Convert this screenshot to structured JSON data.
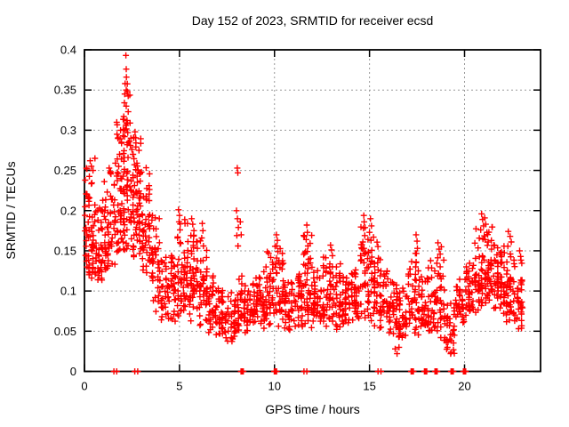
{
  "page_title": "Day 152 of 2023, SRMTID for receiver ecsd",
  "chart_data": {
    "type": "scatter",
    "title": "Day 152 of 2023, SRMTID for receiver ecsd",
    "xlabel": "GPS time / hours",
    "ylabel": "SRMTID / TECUs",
    "xlim": [
      0,
      24
    ],
    "ylim": [
      0,
      0.4
    ],
    "xticks": {
      "values": [
        0,
        5,
        10,
        15,
        20
      ],
      "labels": [
        "0",
        "5",
        "10",
        "15",
        "20"
      ]
    },
    "yticks": {
      "values": [
        0,
        0.05,
        0.1,
        0.15,
        0.2,
        0.25,
        0.3,
        0.35,
        0.4
      ],
      "labels": [
        "0",
        "0.05",
        "0.1",
        "0.15",
        "0.2",
        "0.25",
        "0.3",
        "0.35",
        "0.4"
      ]
    },
    "grid": true,
    "grid_x_values": [
      5,
      10,
      15,
      20
    ],
    "grid_y_values": [
      0.05,
      0.1,
      0.15,
      0.2,
      0.25,
      0.3,
      0.35
    ],
    "legend": null,
    "marker": {
      "shape": "plus",
      "color": "#ff0000",
      "size": 7,
      "stroke_width": 1.4
    },
    "colors": {
      "marker": "#ff0000",
      "axis": "#000000",
      "grid": "#999999",
      "background": "#ffffff"
    },
    "seed": 7,
    "columns_per_band": 3,
    "density_bands": [
      [
        0,
        0.5,
        55,
        0.1,
        0.26
      ],
      [
        0.5,
        1,
        42,
        0.11,
        0.22
      ],
      [
        1,
        1.5,
        45,
        0.12,
        0.25
      ],
      [
        1.5,
        2,
        50,
        0.13,
        0.31
      ],
      [
        2,
        2.5,
        60,
        0.14,
        0.36
      ],
      [
        2.5,
        3,
        60,
        0.13,
        0.31
      ],
      [
        3,
        3.5,
        46,
        0.12,
        0.26
      ],
      [
        3.5,
        4,
        40,
        0.07,
        0.2
      ],
      [
        4,
        4.5,
        35,
        0.055,
        0.15
      ],
      [
        4.5,
        5,
        40,
        0.06,
        0.17
      ],
      [
        5,
        5.5,
        45,
        0.07,
        0.19
      ],
      [
        5.5,
        6,
        45,
        0.06,
        0.19
      ],
      [
        6,
        6.5,
        40,
        0.05,
        0.17
      ],
      [
        6.5,
        7,
        35,
        0.045,
        0.12
      ],
      [
        7,
        7.5,
        35,
        0.04,
        0.11
      ],
      [
        7.5,
        8,
        35,
        0.03,
        0.1
      ],
      [
        8,
        8.5,
        40,
        0.04,
        0.12
      ],
      [
        8.5,
        9,
        35,
        0.05,
        0.11
      ],
      [
        9,
        9.5,
        40,
        0.05,
        0.14
      ],
      [
        9.5,
        10,
        40,
        0.05,
        0.15
      ],
      [
        10,
        10.5,
        40,
        0.05,
        0.16
      ],
      [
        10.5,
        11,
        35,
        0.05,
        0.12
      ],
      [
        11,
        11.5,
        38,
        0.05,
        0.13
      ],
      [
        11.5,
        12,
        42,
        0.05,
        0.17
      ],
      [
        12,
        12.5,
        40,
        0.06,
        0.13
      ],
      [
        12.5,
        13,
        40,
        0.055,
        0.15
      ],
      [
        13,
        13.5,
        38,
        0.05,
        0.15
      ],
      [
        13.5,
        14,
        35,
        0.045,
        0.12
      ],
      [
        14,
        14.5,
        38,
        0.05,
        0.13
      ],
      [
        14.5,
        15,
        42,
        0.06,
        0.18
      ],
      [
        15,
        15.5,
        40,
        0.055,
        0.17
      ],
      [
        15.5,
        16,
        38,
        0.05,
        0.14
      ],
      [
        16,
        16.5,
        35,
        0.045,
        0.12
      ],
      [
        16.5,
        17,
        35,
        0.035,
        0.11
      ],
      [
        17,
        17.5,
        38,
        0.04,
        0.15
      ],
      [
        17.5,
        18,
        36,
        0.045,
        0.13
      ],
      [
        18,
        18.5,
        36,
        0.04,
        0.14
      ],
      [
        18.5,
        19,
        36,
        0.035,
        0.15
      ],
      [
        19,
        19.5,
        32,
        0.02,
        0.09
      ],
      [
        19.5,
        20,
        34,
        0.05,
        0.12
      ],
      [
        20,
        20.5,
        38,
        0.06,
        0.14
      ],
      [
        20.5,
        21,
        42,
        0.07,
        0.18
      ],
      [
        21,
        21.5,
        45,
        0.08,
        0.19
      ],
      [
        21.5,
        22,
        45,
        0.07,
        0.16
      ],
      [
        22,
        22.5,
        45,
        0.06,
        0.17
      ],
      [
        22.5,
        23.1,
        42,
        0.05,
        0.14
      ]
    ],
    "spike_points": [
      [
        2.18,
        0.393
      ],
      [
        2.2,
        0.376
      ],
      [
        2.21,
        0.366
      ],
      [
        2.14,
        0.358
      ],
      [
        2.12,
        0.345
      ],
      [
        2.2,
        0.35
      ],
      [
        2.26,
        0.348
      ],
      [
        2.1,
        0.334
      ],
      [
        2.2,
        0.33
      ],
      [
        2.3,
        0.323
      ],
      [
        2.07,
        0.317
      ],
      [
        2.24,
        0.312
      ],
      [
        2.17,
        0.306
      ],
      [
        2.04,
        0.301
      ],
      [
        2.12,
        0.3
      ],
      [
        2.28,
        0.297
      ],
      [
        2.66,
        0.298
      ],
      [
        2.6,
        0.291
      ],
      [
        2.36,
        0.286
      ],
      [
        2.42,
        0.281
      ],
      [
        2.5,
        0.276
      ],
      [
        2.06,
        0.271
      ],
      [
        2.1,
        0.266
      ],
      [
        2.56,
        0.27
      ],
      [
        2.63,
        0.257
      ],
      [
        2.7,
        0.251
      ],
      [
        2.76,
        0.259
      ],
      [
        2.82,
        0.25
      ],
      [
        2.9,
        0.246
      ],
      [
        3.0,
        0.248
      ],
      [
        1.9,
        0.3
      ],
      [
        1.95,
        0.285
      ],
      [
        1.85,
        0.27
      ],
      [
        1.8,
        0.255
      ],
      [
        0.3,
        0.262
      ],
      [
        0.36,
        0.255
      ],
      [
        0.45,
        0.25
      ],
      [
        0.55,
        0.265
      ],
      [
        1.3,
        0.253
      ],
      [
        1.36,
        0.247
      ],
      [
        4.95,
        0.201
      ],
      [
        5.0,
        0.194
      ],
      [
        4.98,
        0.186
      ],
      [
        5.03,
        0.176
      ],
      [
        4.9,
        0.166
      ],
      [
        5.06,
        0.159
      ],
      [
        5.64,
        0.19
      ],
      [
        5.7,
        0.183
      ],
      [
        5.76,
        0.175
      ],
      [
        5.6,
        0.169
      ],
      [
        6.2,
        0.184
      ],
      [
        6.23,
        0.175
      ],
      [
        6.17,
        0.166
      ],
      [
        6.26,
        0.156
      ],
      [
        8.04,
        0.253
      ],
      [
        8.07,
        0.247
      ],
      [
        8.0,
        0.2
      ],
      [
        8.05,
        0.19
      ],
      [
        8.1,
        0.179
      ],
      [
        8.02,
        0.169
      ],
      [
        8.08,
        0.156
      ],
      [
        8.2,
        0.186
      ],
      [
        8.25,
        0.17
      ],
      [
        10.1,
        0.17
      ],
      [
        10.15,
        0.163
      ],
      [
        10.12,
        0.156
      ],
      [
        10.18,
        0.149
      ],
      [
        11.7,
        0.182
      ],
      [
        11.73,
        0.173
      ],
      [
        11.67,
        0.164
      ],
      [
        11.76,
        0.156
      ],
      [
        11.64,
        0.149
      ],
      [
        12.95,
        0.157
      ],
      [
        13.0,
        0.151
      ],
      [
        13.05,
        0.144
      ],
      [
        14.7,
        0.194
      ],
      [
        14.72,
        0.186
      ],
      [
        14.68,
        0.178
      ],
      [
        14.75,
        0.169
      ],
      [
        14.65,
        0.161
      ],
      [
        14.71,
        0.153
      ],
      [
        15.05,
        0.19
      ],
      [
        15.1,
        0.181
      ],
      [
        15.0,
        0.173
      ],
      [
        15.08,
        0.163
      ],
      [
        16.35,
        0.028
      ],
      [
        16.45,
        0.022
      ],
      [
        16.55,
        0.03
      ],
      [
        17.45,
        0.17
      ],
      [
        17.5,
        0.162
      ],
      [
        17.52,
        0.153
      ],
      [
        18.6,
        0.16
      ],
      [
        18.66,
        0.152
      ],
      [
        18.72,
        0.146
      ],
      [
        18.78,
        0.155
      ],
      [
        20.9,
        0.196
      ],
      [
        20.95,
        0.189
      ],
      [
        21.0,
        0.181
      ],
      [
        21.06,
        0.191
      ],
      [
        21.12,
        0.183
      ],
      [
        20.85,
        0.176
      ],
      [
        21.18,
        0.173
      ],
      [
        22.3,
        0.174
      ],
      [
        22.4,
        0.168
      ],
      [
        22.46,
        0.161
      ],
      [
        22.9,
        0.15
      ],
      [
        22.95,
        0.143
      ]
    ],
    "zero_marker_xs": [
      1.55,
      1.7,
      2.65,
      2.8,
      8.24,
      8.27,
      8.3,
      8.33,
      8.36,
      9.99,
      10.02,
      10.05,
      10.08,
      10.11,
      11.55,
      11.7,
      15.45,
      15.6,
      17.19,
      17.22,
      17.25,
      17.28,
      17.31,
      17.89,
      17.92,
      17.95,
      17.98,
      18.01,
      18.44,
      18.47,
      18.5,
      18.53,
      18.56,
      19.29,
      19.32,
      19.35,
      19.38,
      19.41,
      19.94,
      19.97,
      20.0,
      20.03,
      20.06
    ]
  }
}
